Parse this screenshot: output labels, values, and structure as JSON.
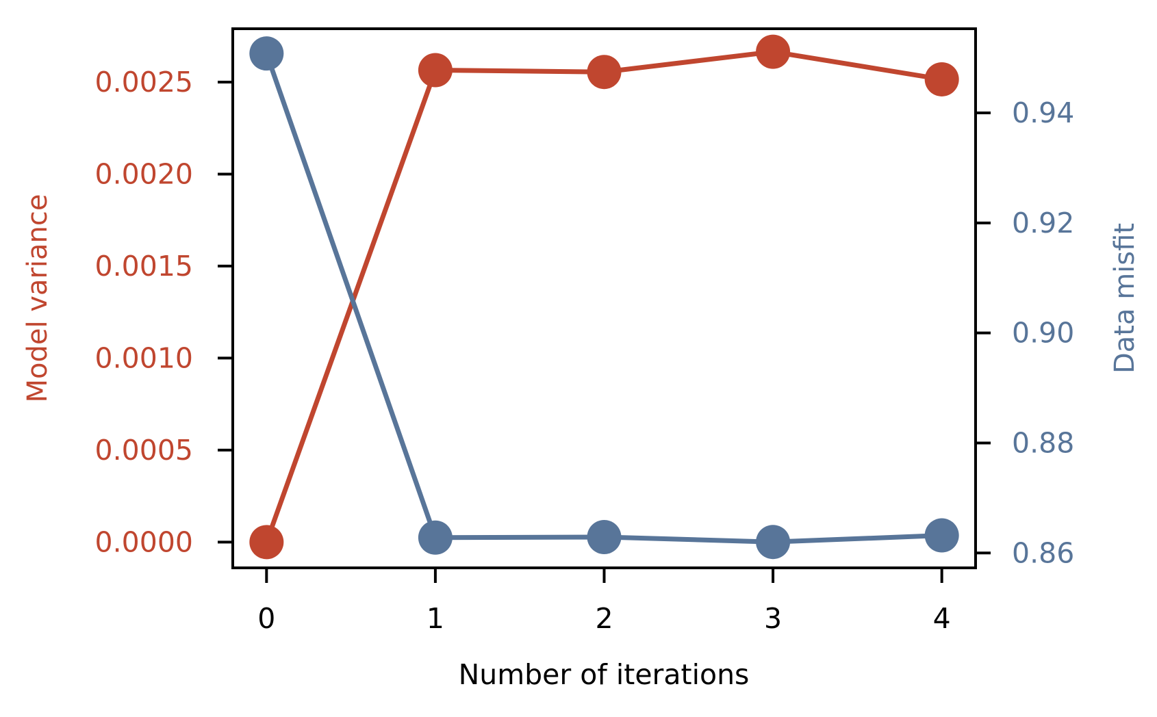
{
  "chart_data": {
    "type": "line",
    "xlabel": "Number of iterations",
    "x": [
      0,
      1,
      2,
      3,
      4
    ],
    "x_ticks": [
      "0",
      "1",
      "2",
      "3",
      "4"
    ],
    "grid": false,
    "series": [
      {
        "name": "Model variance",
        "axis": "left",
        "color": "#c0462f",
        "values": [
          0.0,
          0.002565,
          0.002555,
          0.002665,
          0.002515
        ]
      },
      {
        "name": "Data misfit",
        "axis": "right",
        "color": "#587599",
        "values": [
          0.9508,
          0.8628,
          0.8629,
          0.862,
          0.8632
        ]
      }
    ],
    "y_left": {
      "label": "Model variance",
      "ticks": [
        "0.0000",
        "0.0005",
        "0.0010",
        "0.0015",
        "0.0020",
        "0.0025"
      ],
      "tick_values": [
        0.0,
        0.0005,
        0.001,
        0.0015,
        0.002,
        0.0025
      ],
      "ylim": [
        -0.00014,
        0.00279
      ]
    },
    "y_right": {
      "label": "Data misfit",
      "ticks": [
        "0.86",
        "0.88",
        "0.90",
        "0.92",
        "0.94"
      ],
      "tick_values": [
        0.86,
        0.88,
        0.9,
        0.92,
        0.94
      ],
      "ylim": [
        0.8573,
        0.9553
      ]
    }
  }
}
